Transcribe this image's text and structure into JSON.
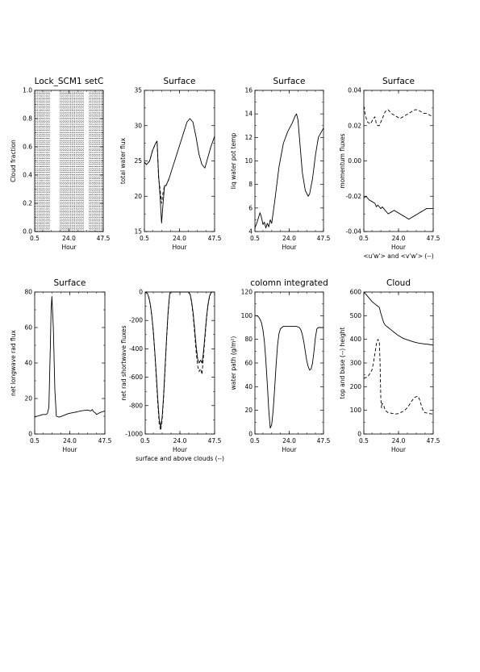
{
  "chart_data": [
    {
      "type": "heatmap",
      "title": "Lock_SCM1 setC",
      "xlabel": "Hour",
      "ylabel": "Cloud fraction",
      "xlim": [
        0.5,
        47.5
      ],
      "ylim": [
        0.0,
        1.0
      ],
      "xticks": [
        "0.5",
        "24.0",
        "47.5"
      ],
      "yticks": [
        "0.0",
        "0.2",
        "0.4",
        "0.6",
        "0.8",
        "1.0"
      ],
      "columns": [
        {
          "x_start": 0.5,
          "x_end": 11.0
        },
        {
          "x_start": 18.0,
          "x_end": 34.5
        },
        {
          "x_start": 38.0,
          "x_end": 47.5
        }
      ]
    },
    {
      "type": "line",
      "title": "Surface",
      "xlabel": "Hour",
      "ylabel": "total water flux",
      "xlim": [
        0.5,
        47.5
      ],
      "ylim": [
        15,
        35
      ],
      "xticks": [
        "0.5",
        "24.0",
        "47.5"
      ],
      "yticks": [
        "15",
        "20",
        "25",
        "30",
        "35"
      ],
      "series": [
        {
          "style": "solid",
          "x": [
            0.5,
            2,
            4,
            6,
            8,
            9,
            10,
            11,
            12,
            13,
            14,
            15,
            17,
            20,
            23,
            26,
            29,
            31,
            33,
            35,
            37,
            39,
            41,
            43,
            45,
            47.5
          ],
          "y": [
            24.8,
            24.5,
            25.0,
            26.5,
            27.5,
            27.8,
            23.0,
            20.0,
            16.2,
            19.0,
            21.5,
            21.5,
            22.5,
            24.5,
            26.5,
            28.5,
            30.5,
            31.0,
            30.5,
            28.5,
            26.0,
            24.5,
            24.0,
            25.5,
            27.0,
            28.5
          ]
        },
        {
          "style": "dashed",
          "x": [
            0.5,
            2,
            4,
            6,
            8,
            9,
            10,
            11,
            12,
            13,
            14,
            15,
            17
          ],
          "y": [
            24.8,
            24.5,
            25.0,
            26.5,
            27.5,
            27.8,
            22.5,
            21.0,
            19.0,
            20.5,
            21.5,
            21.5,
            22.5
          ]
        }
      ]
    },
    {
      "type": "line",
      "title": "Surface",
      "xlabel": "Hour",
      "ylabel": "liq water pot temp",
      "xlim": [
        0.5,
        47.5
      ],
      "ylim": [
        4,
        16
      ],
      "xticks": [
        "0.5",
        "24.0",
        "47.5"
      ],
      "yticks": [
        "4",
        "6",
        "8",
        "10",
        "12",
        "14",
        "16"
      ],
      "series": [
        {
          "style": "solid",
          "x": [
            0.5,
            2,
            4,
            5,
            6,
            7,
            8,
            9,
            10,
            11,
            12,
            14,
            17,
            20,
            23,
            26,
            28,
            29,
            30,
            31,
            33,
            35,
            37,
            38,
            40,
            42,
            44,
            47.5
          ],
          "y": [
            4.3,
            4.8,
            5.6,
            5.2,
            4.6,
            4.8,
            4.3,
            4.7,
            4.4,
            5.0,
            4.7,
            6.5,
            9.5,
            11.5,
            12.5,
            13.2,
            13.8,
            14.0,
            13.5,
            12.0,
            9.0,
            7.5,
            7.0,
            7.2,
            8.5,
            10.5,
            12.0,
            12.8
          ]
        }
      ]
    },
    {
      "type": "line",
      "title": "Surface",
      "xlabel": "Hour",
      "ylabel": "momentum fluxes",
      "annotation": "<u'w'> and <v'w'> (--)",
      "xlim": [
        0.5,
        47.5
      ],
      "ylim": [
        -0.04,
        0.04
      ],
      "xticks": [
        "0.5",
        "24.0",
        "47.5"
      ],
      "yticks": [
        "-0.04",
        "-0.02",
        "0.00",
        "0.02",
        "0.04"
      ],
      "series": [
        {
          "style": "solid",
          "x": [
            0.5,
            2,
            4,
            6,
            8,
            9,
            10,
            11,
            12,
            13,
            14,
            15,
            17,
            19,
            21,
            23,
            25,
            27,
            29,
            31,
            33,
            35,
            37,
            39,
            41,
            43,
            45,
            47.5
          ],
          "y": [
            -0.021,
            -0.02,
            -0.022,
            -0.023,
            -0.024,
            -0.026,
            -0.025,
            -0.026,
            -0.027,
            -0.026,
            -0.027,
            -0.028,
            -0.03,
            -0.029,
            -0.028,
            -0.029,
            -0.03,
            -0.031,
            -0.032,
            -0.033,
            -0.032,
            -0.031,
            -0.03,
            -0.029,
            -0.028,
            -0.027,
            -0.027,
            -0.027
          ]
        },
        {
          "style": "dashed",
          "x": [
            0.5,
            1.5,
            3,
            5,
            7,
            8,
            9,
            10,
            11,
            13,
            15,
            17,
            19,
            21,
            23,
            25,
            27,
            29,
            31,
            33,
            35,
            37,
            39,
            41,
            43,
            45,
            47.5
          ],
          "y": [
            0.031,
            0.026,
            0.022,
            0.021,
            0.024,
            0.025,
            0.021,
            0.02,
            0.02,
            0.024,
            0.028,
            0.029,
            0.027,
            0.026,
            0.025,
            0.024,
            0.025,
            0.026,
            0.027,
            0.028,
            0.029,
            0.029,
            0.028,
            0.027,
            0.027,
            0.026,
            0.025
          ]
        }
      ]
    },
    {
      "type": "line",
      "title": "Surface",
      "xlabel": "Hour",
      "ylabel": "net longwave rad flux",
      "xlim": [
        0.5,
        47.5
      ],
      "ylim": [
        0,
        80
      ],
      "xticks": [
        "0.5",
        "24.0",
        "47.5"
      ],
      "yticks": [
        "0",
        "20",
        "40",
        "60",
        "80"
      ],
      "series": [
        {
          "style": "solid",
          "x": [
            0.5,
            2,
            4,
            6,
            8,
            9,
            10,
            11,
            11.5,
            12,
            13,
            14,
            15,
            17,
            20,
            23,
            26,
            29,
            31,
            33,
            36,
            38,
            39,
            40,
            41,
            42,
            44,
            47.5
          ],
          "y": [
            9.5,
            10.0,
            10.5,
            11.0,
            11.0,
            11.5,
            15.0,
            50.0,
            70.0,
            77.5,
            60.0,
            25.0,
            10.0,
            9.5,
            10.5,
            11.5,
            12.0,
            12.5,
            13.0,
            13.2,
            13.5,
            13.0,
            13.8,
            12.5,
            12.0,
            11.0,
            12.0,
            13.0
          ]
        }
      ]
    },
    {
      "type": "line",
      "title": "",
      "xlabel": "Hour",
      "ylabel": "net rad shortwave fluxes",
      "annotation": "surface and above clouds (--)",
      "xlim": [
        0.5,
        47.5
      ],
      "ylim": [
        -1000,
        0
      ],
      "xticks": [
        "0.5",
        "24.0",
        "47.5"
      ],
      "yticks": [
        "-1000",
        "-800",
        "-600",
        "-400",
        "-200",
        "0"
      ],
      "series": [
        {
          "style": "solid",
          "x": [
            0.5,
            2,
            3,
            4,
            5,
            6,
            7,
            8,
            9,
            10,
            11,
            12,
            13,
            14,
            15,
            16,
            17,
            17.5,
            22,
            26,
            30,
            31,
            32,
            33,
            34,
            35,
            36,
            37,
            38,
            39,
            40,
            41,
            42,
            43,
            44,
            45,
            46,
            46.5,
            47.5
          ],
          "y": [
            0,
            -10,
            -40,
            -90,
            -170,
            -280,
            -420,
            -580,
            -750,
            -900,
            -950,
            -880,
            -720,
            -520,
            -320,
            -140,
            -20,
            0,
            0,
            0,
            0,
            -20,
            -70,
            -150,
            -260,
            -380,
            -470,
            -500,
            -480,
            -500,
            -420,
            -300,
            -180,
            -90,
            -30,
            -5,
            0,
            0,
            0
          ]
        },
        {
          "style": "dashed",
          "x": [
            0.5,
            2,
            3,
            4,
            5,
            6,
            7,
            8,
            9,
            10,
            11,
            12,
            13,
            14,
            15,
            16,
            17,
            17.5,
            30,
            31,
            32,
            33,
            34,
            35,
            36,
            37,
            38,
            39,
            40,
            41,
            42,
            43,
            44,
            45,
            46
          ],
          "y": [
            0,
            -10,
            -40,
            -90,
            -170,
            -280,
            -430,
            -600,
            -780,
            -930,
            -975,
            -900,
            -740,
            -540,
            -330,
            -150,
            -25,
            0,
            0,
            -20,
            -80,
            -170,
            -290,
            -420,
            -520,
            -560,
            -540,
            -580,
            -450,
            -320,
            -190,
            -95,
            -35,
            -5,
            0
          ]
        }
      ]
    },
    {
      "type": "line",
      "title": "colomn integrated",
      "xlabel": "Hour",
      "ylabel": "water path (g/m²)",
      "xlim": [
        0.5,
        47.5
      ],
      "ylim": [
        0,
        120
      ],
      "xticks": [
        "0.5",
        "24.0",
        "47.5"
      ],
      "yticks": [
        "0",
        "20",
        "40",
        "60",
        "80",
        "100",
        "120"
      ],
      "series": [
        {
          "style": "solid",
          "x": [
            0.5,
            2,
            3,
            4,
            5,
            6,
            7,
            8,
            9,
            10,
            11,
            12,
            13,
            14,
            15,
            16,
            17,
            18,
            19,
            20,
            21,
            23,
            26,
            29,
            31,
            32,
            33,
            34,
            35,
            36,
            37,
            38,
            39,
            40,
            41,
            42,
            43,
            44,
            46,
            47.5
          ],
          "y": [
            100,
            100,
            99,
            97,
            94,
            88,
            78,
            62,
            42,
            20,
            5,
            8,
            20,
            38,
            58,
            75,
            85,
            89,
            90,
            91,
            91,
            91,
            91,
            91,
            90,
            88,
            84,
            78,
            70,
            62,
            57,
            54,
            55,
            60,
            70,
            82,
            89,
            90,
            90,
            90
          ]
        }
      ]
    },
    {
      "type": "line",
      "title": "Cloud",
      "xlabel": "Hour",
      "ylabel": "top and base (--) height",
      "xlim": [
        0.5,
        47.5
      ],
      "ylim": [
        0,
        600
      ],
      "xticks": [
        "0.5",
        "24.0",
        "47.5"
      ],
      "yticks": [
        "0",
        "100",
        "200",
        "300",
        "400",
        "500",
        "600"
      ],
      "series": [
        {
          "style": "solid",
          "x": [
            0.5,
            2,
            4,
            6,
            8,
            10,
            11,
            12,
            13,
            14,
            15,
            17,
            19,
            21,
            23,
            25,
            27,
            29,
            31,
            33,
            35,
            37,
            39,
            41,
            43,
            45,
            47.5
          ],
          "y": [
            600,
            590,
            575,
            560,
            550,
            540,
            535,
            510,
            490,
            470,
            460,
            450,
            440,
            430,
            420,
            412,
            405,
            400,
            396,
            392,
            388,
            385,
            383,
            381,
            380,
            378,
            376
          ]
        },
        {
          "style": "dashed",
          "x": [
            0.5,
            1.5,
            3,
            4.5,
            6,
            7,
            8,
            9,
            10,
            11,
            11.5,
            12,
            12.5,
            13,
            14,
            15,
            16,
            17,
            19,
            21,
            23,
            25,
            27,
            29,
            31,
            33,
            35,
            37,
            38,
            39,
            40,
            41,
            42,
            44,
            46,
            47.5
          ],
          "y": [
            235,
            238,
            240,
            255,
            270,
            300,
            340,
            380,
            400,
            390,
            300,
            150,
            110,
            130,
            120,
            100,
            95,
            90,
            88,
            85,
            85,
            90,
            95,
            105,
            120,
            140,
            155,
            160,
            150,
            130,
            110,
            95,
            90,
            88,
            85,
            85
          ]
        }
      ]
    }
  ]
}
